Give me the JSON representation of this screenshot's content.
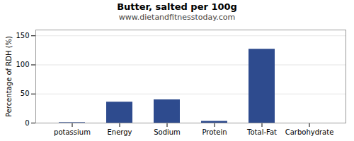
{
  "chart_data": {
    "type": "bar",
    "title": "Butter, salted per 100g",
    "subtitle": "www.dietandfitnesstoday.com",
    "ylabel": "Percentage of RDH (%)",
    "categories": [
      "potassium",
      "Energy",
      "Sodium",
      "Protein",
      "Total-Fat",
      "Carbohydrate"
    ],
    "values": [
      0.8,
      36,
      40,
      3,
      127,
      0
    ],
    "color": "#2e4b8e",
    "ylim": [
      0,
      160
    ],
    "yticks": [
      0,
      50,
      100,
      150
    ],
    "grid": true
  }
}
